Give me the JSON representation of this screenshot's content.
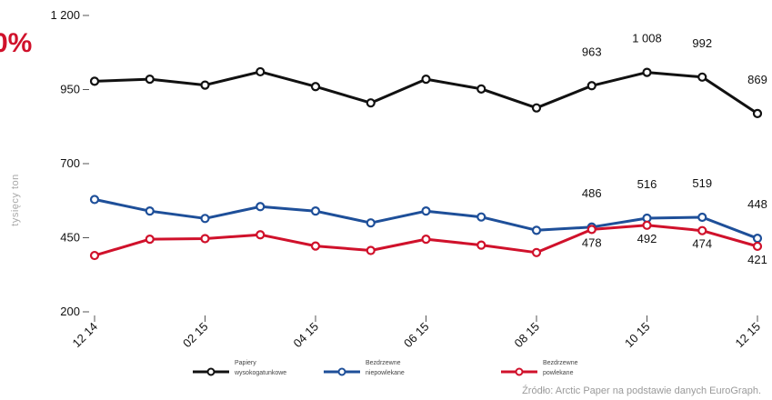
{
  "headline": "0%",
  "source": "Źródło: Arctic Paper na podstawie danych EuroGraph.",
  "chart_data": {
    "type": "line",
    "ylabel": "tysięcy  ton",
    "ylim": [
      200,
      1200
    ],
    "yticks": [
      "1 200",
      "950",
      "700",
      "450",
      "200"
    ],
    "ytick_values": [
      1200,
      950,
      700,
      450,
      200
    ],
    "xtick_labels": [
      "12 14",
      "02 15",
      "04 15",
      "06 15",
      "08 15",
      "10 15",
      "12 15"
    ],
    "xtick_index": [
      0,
      2,
      4,
      6,
      8,
      10,
      12
    ],
    "grid": false,
    "legend_position": "bottom",
    "series": [
      {
        "name": "Papiery wysokogatunkowe",
        "color": "#111111",
        "values": [
          978,
          985,
          965,
          1010,
          960,
          905,
          985,
          952,
          888,
          963,
          1008,
          992,
          869
        ]
      },
      {
        "name": "Bezdrzewne niepowlekane",
        "color": "#1e4f99",
        "values": [
          579,
          540,
          515,
          555,
          540,
          500,
          540,
          520,
          475,
          486,
          516,
          519,
          448
        ]
      },
      {
        "name": "Bezdrzewne powlekane",
        "color": "#d0112b",
        "values": [
          390,
          445,
          447,
          460,
          422,
          407,
          445,
          425,
          400,
          478,
          492,
          474,
          421
        ]
      }
    ],
    "annotations": [
      {
        "index": 9,
        "series": 0,
        "text": "963",
        "pos": "above"
      },
      {
        "index": 10,
        "series": 0,
        "text": "1 008",
        "pos": "above"
      },
      {
        "index": 11,
        "series": 0,
        "text": "992",
        "pos": "above"
      },
      {
        "index": 12,
        "series": 0,
        "text": "869",
        "pos": "above"
      },
      {
        "index": 9,
        "series": 1,
        "text": "486",
        "pos": "above"
      },
      {
        "index": 10,
        "series": 1,
        "text": "516",
        "pos": "above"
      },
      {
        "index": 11,
        "series": 1,
        "text": "519",
        "pos": "above"
      },
      {
        "index": 12,
        "series": 1,
        "text": "448",
        "pos": "above"
      },
      {
        "index": 9,
        "series": 2,
        "text": "478",
        "pos": "below"
      },
      {
        "index": 10,
        "series": 2,
        "text": "492",
        "pos": "below"
      },
      {
        "index": 11,
        "series": 2,
        "text": "474",
        "pos": "below"
      },
      {
        "index": 12,
        "series": 2,
        "text": "421",
        "pos": "below"
      }
    ]
  }
}
